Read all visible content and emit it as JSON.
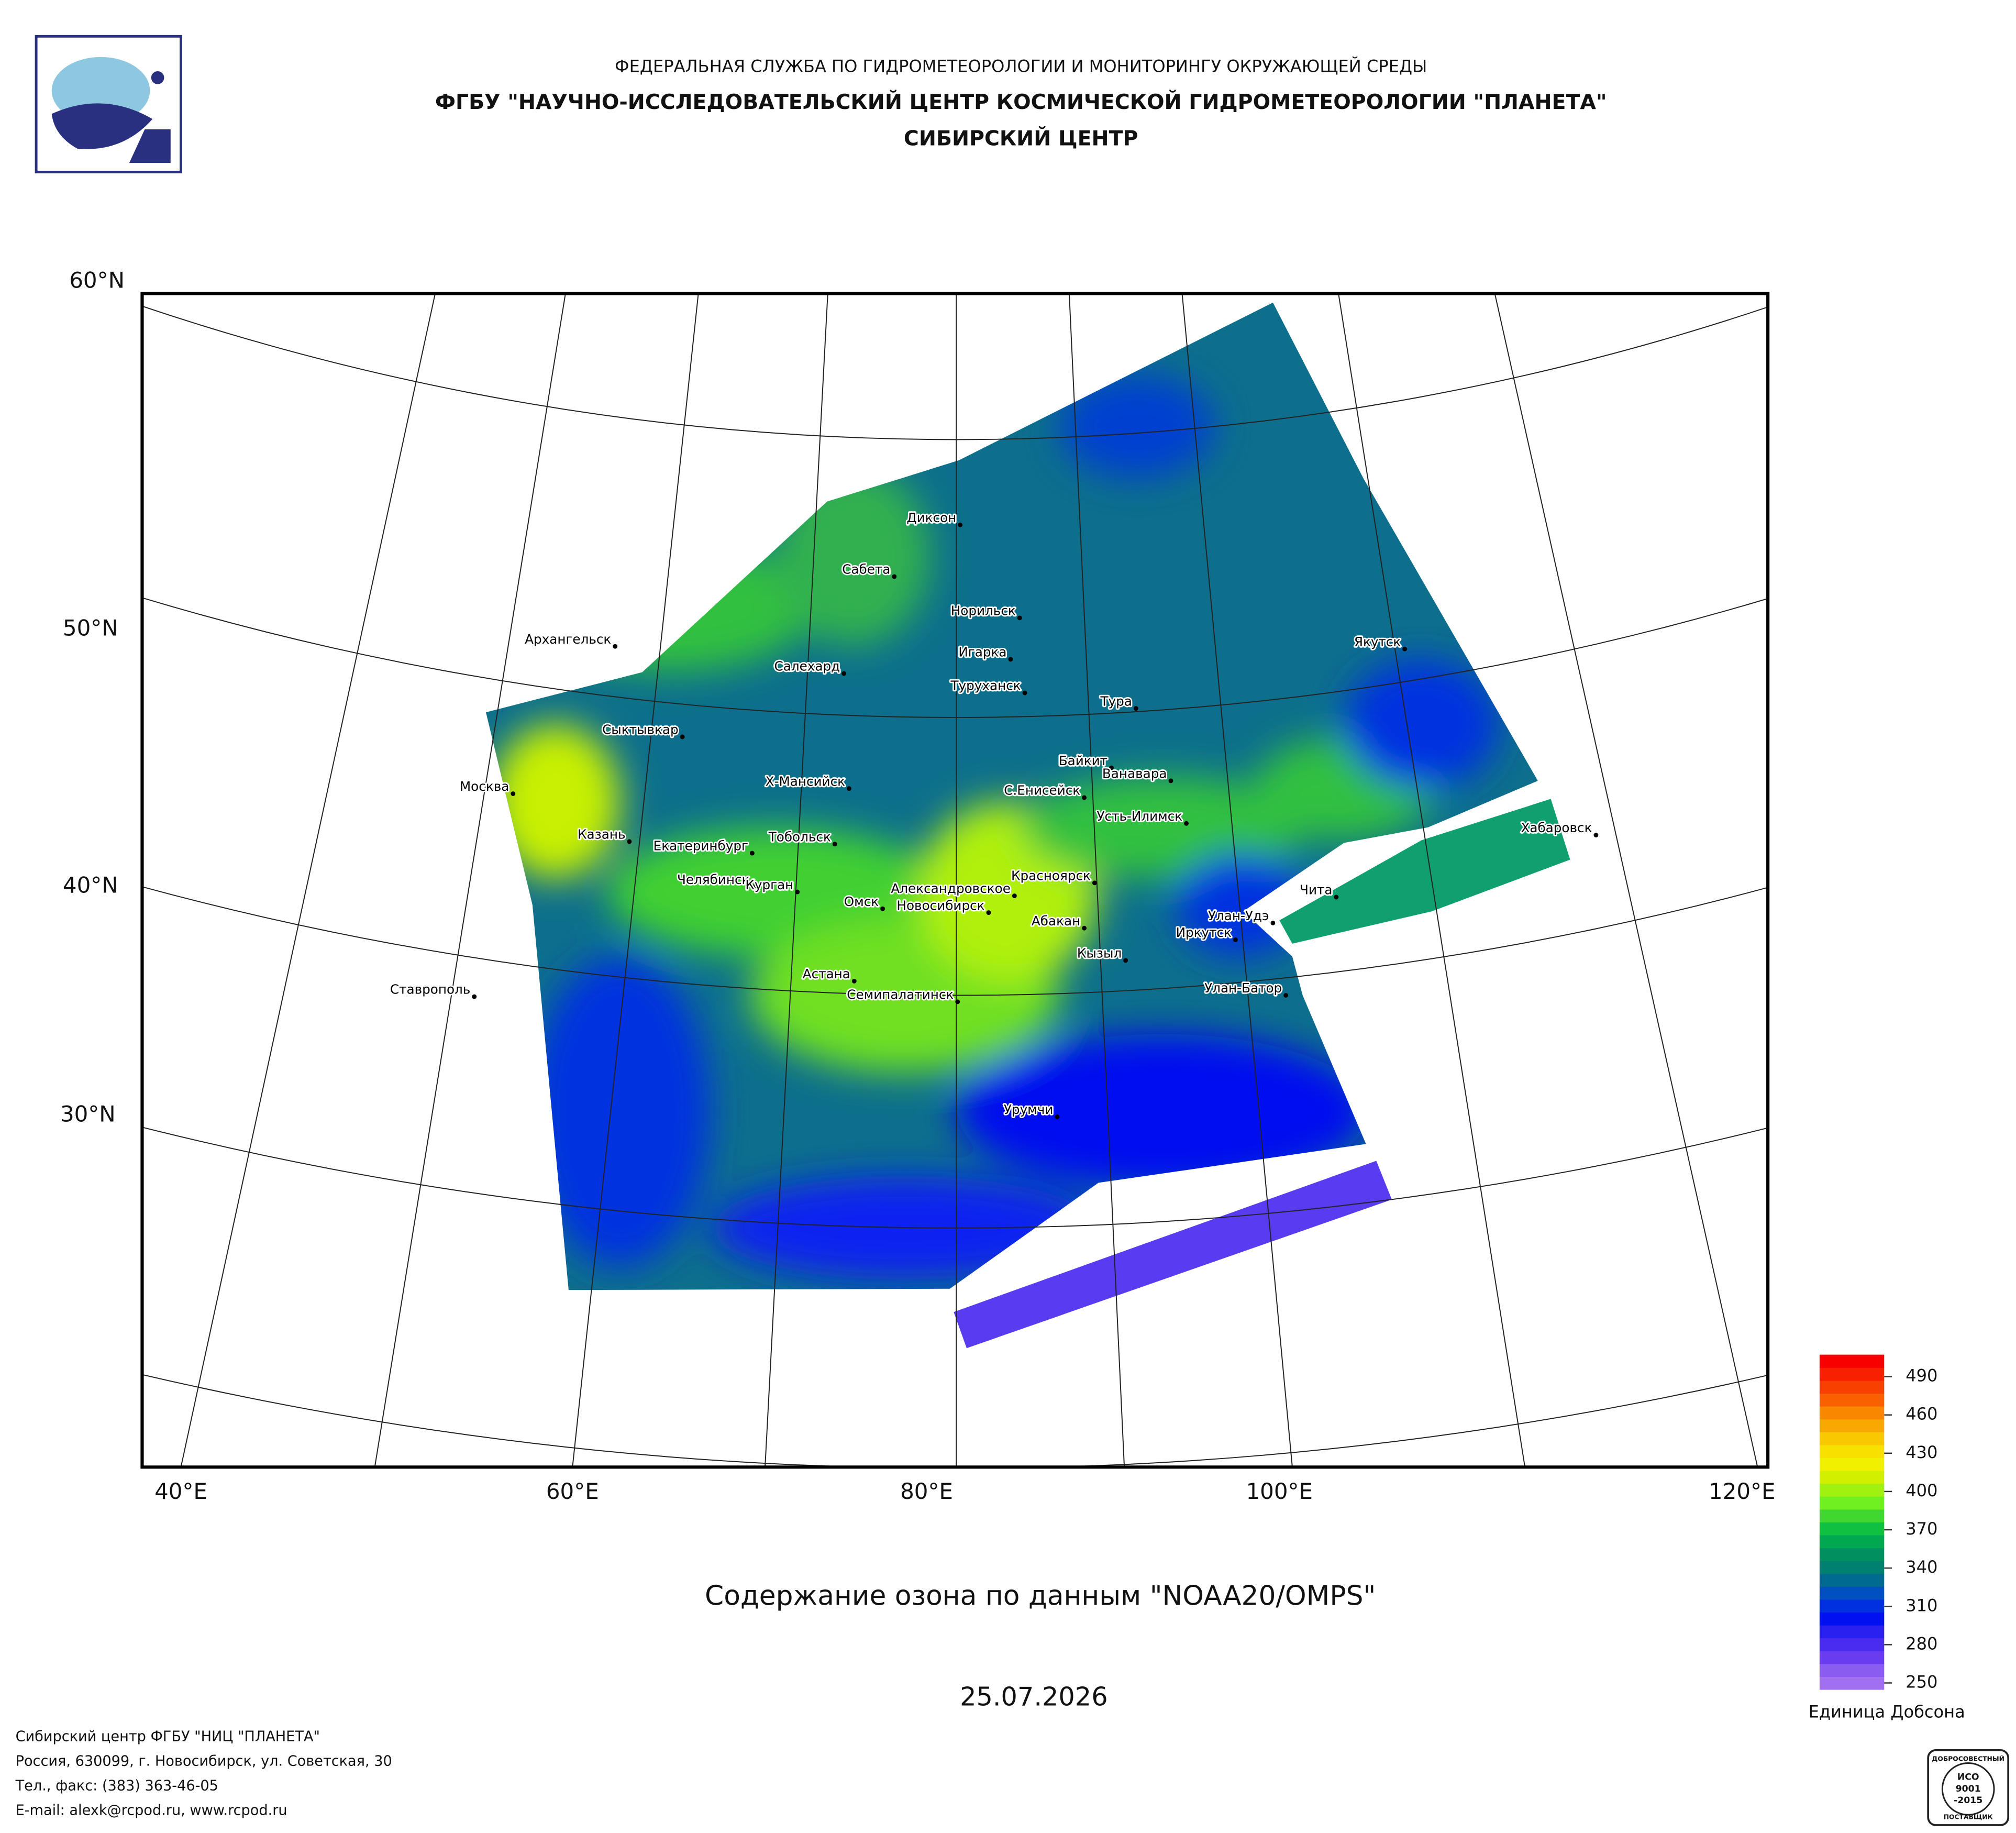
{
  "header": {
    "line1": "ФЕДЕРАЛЬНАЯ СЛУЖБА ПО ГИДРОМЕТЕОРОЛОГИИ И МОНИТОРИНГУ ОКРУЖАЮЩЕЙ СРЕДЫ",
    "line2": "ФГБУ \"НАУЧНО-ИССЛЕДОВАТЕЛЬСКИЙ ЦЕНТР КОСМИЧЕСКОЙ ГИДРОМЕТЕОРОЛОГИИ \"ПЛАНЕТА\"",
    "line3": "СИБИРСКИЙ ЦЕНТР"
  },
  "map": {
    "lat_labels": [
      "60°N",
      "50°N",
      "40°N",
      "30°N"
    ],
    "lon_labels": [
      "40°E",
      "60°E",
      "80°E",
      "100°E",
      "120°E"
    ],
    "cities": [
      "Диксон",
      "Сабета",
      "Норильск",
      "Архангельск",
      "Игарка",
      "Салехард",
      "Якутск",
      "Туруханск",
      "Тура",
      "Сыктывкар",
      "Байкит",
      "Ванавара",
      "Москва",
      "Х-Мансийск",
      "С.Енисейск",
      "Усть-Илимск",
      "Хабаровск",
      "Казань",
      "Тобольск",
      "Екатеринбург",
      "Красноярск",
      "Челябинск",
      "Чита",
      "Курган",
      "Омск",
      "Александровское",
      "Новосибирск",
      "Улан-Удэ",
      "Абакан",
      "Иркутск",
      "Кызыл",
      "Астана",
      "Улан-Батор",
      "Ставрополь",
      "Семипалатинск",
      "Урумчи"
    ]
  },
  "title": "Содержание озона по данным \"NOAA20/OMPS\"",
  "date": "25.07.2026",
  "colorbar": {
    "ticks": [
      490,
      460,
      430,
      400,
      370,
      340,
      310,
      280,
      250
    ],
    "label": "Единица Добсона",
    "colors": [
      "#a070f0",
      "#8a5cf0",
      "#6a3cf0",
      "#4a2cf0",
      "#2a20f0",
      "#0010f0",
      "#0030e0",
      "#0050c0",
      "#006a90",
      "#008070",
      "#009060",
      "#00a850",
      "#10c040",
      "#40d830",
      "#70f020",
      "#a0f010",
      "#d0f000",
      "#f0f000",
      "#f8e000",
      "#f8c800",
      "#f8a800",
      "#f88800",
      "#f86000",
      "#f84000",
      "#f82000",
      "#f80000"
    ]
  },
  "footer": [
    "Сибирский центр ФГБУ \"НИЦ \"ПЛАНЕТА\"",
    "Россия, 630099, г. Новосибирск, ул. Советская, 30",
    "Тел., факс: (383) 363-46-05",
    "E-mail: alexk@rcpod.ru, www.rcpod.ru"
  ],
  "badge": [
    "ДОБРОСОВЕСТНЫЙ",
    "ИСО",
    "9001",
    "-2015",
    "ПОСТАВЩИК"
  ]
}
